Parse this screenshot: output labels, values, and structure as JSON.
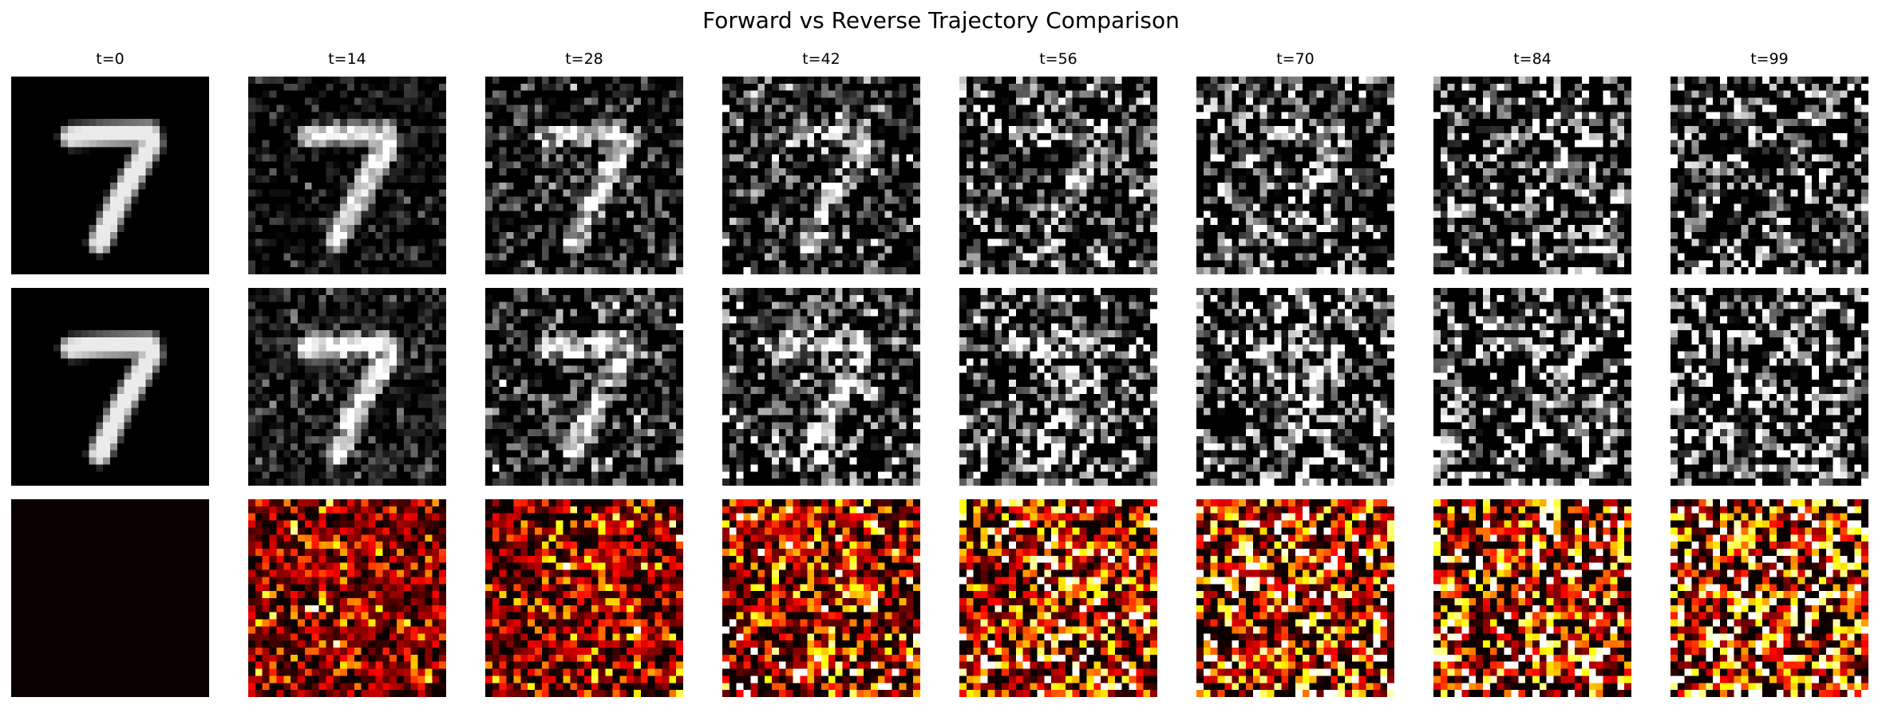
{
  "figure": {
    "title": "Forward vs Reverse Trajectory Comparison"
  },
  "columns": [
    {
      "label": "t=0",
      "t": 0
    },
    {
      "label": "t=14",
      "t": 14
    },
    {
      "label": "t=28",
      "t": 28
    },
    {
      "label": "t=42",
      "t": 42
    },
    {
      "label": "t=56",
      "t": 56
    },
    {
      "label": "t=70",
      "t": 70
    },
    {
      "label": "t=84",
      "t": 84
    },
    {
      "label": "t=99",
      "t": 99
    }
  ],
  "rows": [
    {
      "kind": "forward",
      "colormap": "gray"
    },
    {
      "kind": "reverse",
      "colormap": "gray"
    },
    {
      "kind": "difference",
      "colormap": "hot"
    }
  ],
  "digit": "7"
}
